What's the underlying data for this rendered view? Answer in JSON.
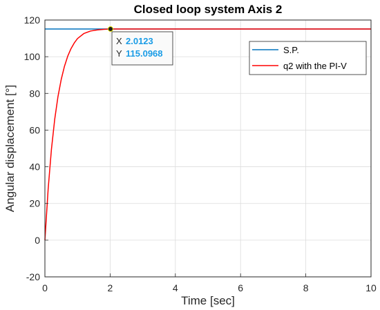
{
  "chart_data": {
    "type": "line",
    "title": "Closed loop system Axis 2",
    "xlabel": "Time [sec]",
    "ylabel": "Angular displacement [°]",
    "xlim": [
      0,
      10
    ],
    "ylim": [
      -20,
      120
    ],
    "xticks": [
      0,
      2,
      4,
      6,
      8,
      10
    ],
    "yticks": [
      -20,
      0,
      20,
      40,
      60,
      80,
      100,
      120
    ],
    "grid": true,
    "legend_position": "top-right",
    "series": [
      {
        "name": "S.P.",
        "color": "#0072BD",
        "x": [
          0,
          10
        ],
        "y": [
          115.0968,
          115.0968
        ]
      },
      {
        "name": "q2 with the PI-V",
        "color": "#FF0000",
        "x": [
          0,
          0.1,
          0.2,
          0.3,
          0.4,
          0.5,
          0.6,
          0.7,
          0.8,
          0.9,
          1.0,
          1.2,
          1.4,
          1.6,
          1.8,
          2.0123,
          2.5,
          3,
          4,
          5,
          6,
          7,
          8,
          9,
          10
        ],
        "y": [
          0,
          28.0,
          49.5,
          65.8,
          78.2,
          87.6,
          94.8,
          100.3,
          104.4,
          107.5,
          109.9,
          112.7,
          114.0,
          114.6,
          114.9,
          115.0968,
          115.1,
          115.1,
          115.1,
          115.1,
          115.1,
          115.1,
          115.1,
          115.1,
          115.1
        ]
      }
    ],
    "datatip": {
      "x_label": "X",
      "x_value": "2.0123",
      "y_label": "Y",
      "y_value": "115.0968",
      "point": [
        2.0123,
        115.0968
      ]
    }
  }
}
